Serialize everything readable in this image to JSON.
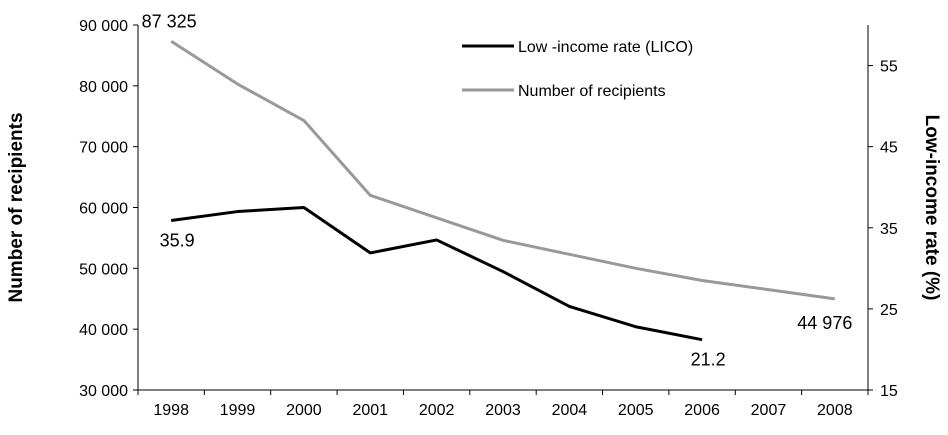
{
  "chart_data": {
    "type": "line",
    "title": "",
    "xlabel": "",
    "ylabel": "Number of recipients",
    "y2label": "Low-income rate (%)",
    "categories": [
      "1998",
      "1999",
      "2000",
      "2001",
      "2002",
      "2003",
      "2004",
      "2005",
      "2006",
      "2007",
      "2008"
    ],
    "ylim": [
      30000,
      90000
    ],
    "y2lim": [
      15,
      60
    ],
    "yticks": [
      30000,
      40000,
      50000,
      60000,
      70000,
      80000,
      90000
    ],
    "yticklabels": [
      "30 000",
      "40 000",
      "50 000",
      "60 000",
      "70 000",
      "80 000",
      "90 000"
    ],
    "y2ticks": [
      15,
      25,
      35,
      45,
      55
    ],
    "y2ticklabels": [
      "15",
      "25",
      "35",
      "45",
      "55"
    ],
    "grid": false,
    "legend_position": "top-center",
    "series": [
      {
        "name": "Low -income rate (LICO)",
        "axis": "right",
        "color": "#000000",
        "values": [
          35.9,
          37.0,
          37.5,
          31.9,
          33.5,
          29.6,
          25.3,
          22.8,
          21.2,
          null,
          null
        ]
      },
      {
        "name": "Number of recipients",
        "axis": "left",
        "color": "#999999",
        "values": [
          87325,
          80300,
          74300,
          62000,
          58300,
          54600,
          52300,
          50000,
          48000,
          46500,
          44976
        ]
      }
    ],
    "annotations": [
      {
        "series": 1,
        "index": 0,
        "text": "87 325",
        "position": "above"
      },
      {
        "series": 0,
        "index": 0,
        "text": "35.9",
        "position": "below"
      },
      {
        "series": 0,
        "index": 8,
        "text": "21.2",
        "position": "below"
      },
      {
        "series": 1,
        "index": 10,
        "text": "44 976",
        "position": "below-left"
      }
    ]
  }
}
